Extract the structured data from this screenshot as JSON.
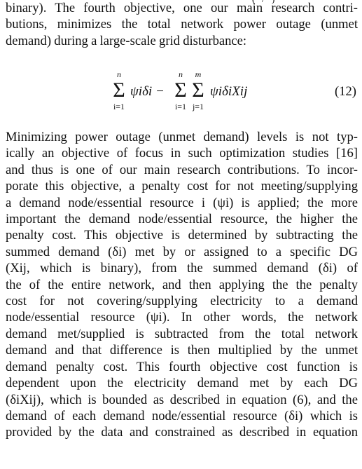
{
  "top_partial": [
    "(",
    "/",
    ")"
  ],
  "paragraph1": [
    "binary). The fourth objective, one our main research contri-",
    "butions, minimizes the total network power outage (unmet",
    "demand) during a large-scale grid disturbance:"
  ],
  "equation": {
    "number": "(12)",
    "sum_upper_1": "n",
    "sum_lower_1": "i=1",
    "term_1": "ψiδi −",
    "sum_upper_2": "n",
    "sum_lower_2": "i=1",
    "sum_upper_3": "m",
    "sum_lower_3": "j=1",
    "term_2": "ψiδiXij"
  },
  "paragraph2": [
    "Minimizing power outage (unmet demand) levels is not typ-",
    "ically an objective of focus in such optimization studies [16]",
    "and thus is one of our main research contributions. To incor-",
    "porate this objective, a penalty cost for not meeting/supplying",
    "a demand node/essential resource i (ψi) is applied; the more",
    "important the demand node/essential resource, the higher the",
    "penalty cost. This objective is determined by subtracting the",
    "summed demand (δi) met by or assigned to a specific DG",
    "(Xij, which is binary), from the summed demand (δi) of",
    "the of the entire network, and then applying the the penalty",
    "cost for not covering/supplying electricity to a demand",
    "node/essential resource (ψi). In other words, the network",
    "demand met/supplied is subtracted from the total network",
    "demand and that difference is then multiplied by the unmet",
    "demand penalty cost. This fourth objective cost function is",
    "dependent upon the electricity demand met by each DG",
    "(δiXij), which is bounded as described in equation (6), and the",
    "demand of each demand node/essential resource (δi) which is",
    "provided by the data and constrained as described in equation"
  ]
}
